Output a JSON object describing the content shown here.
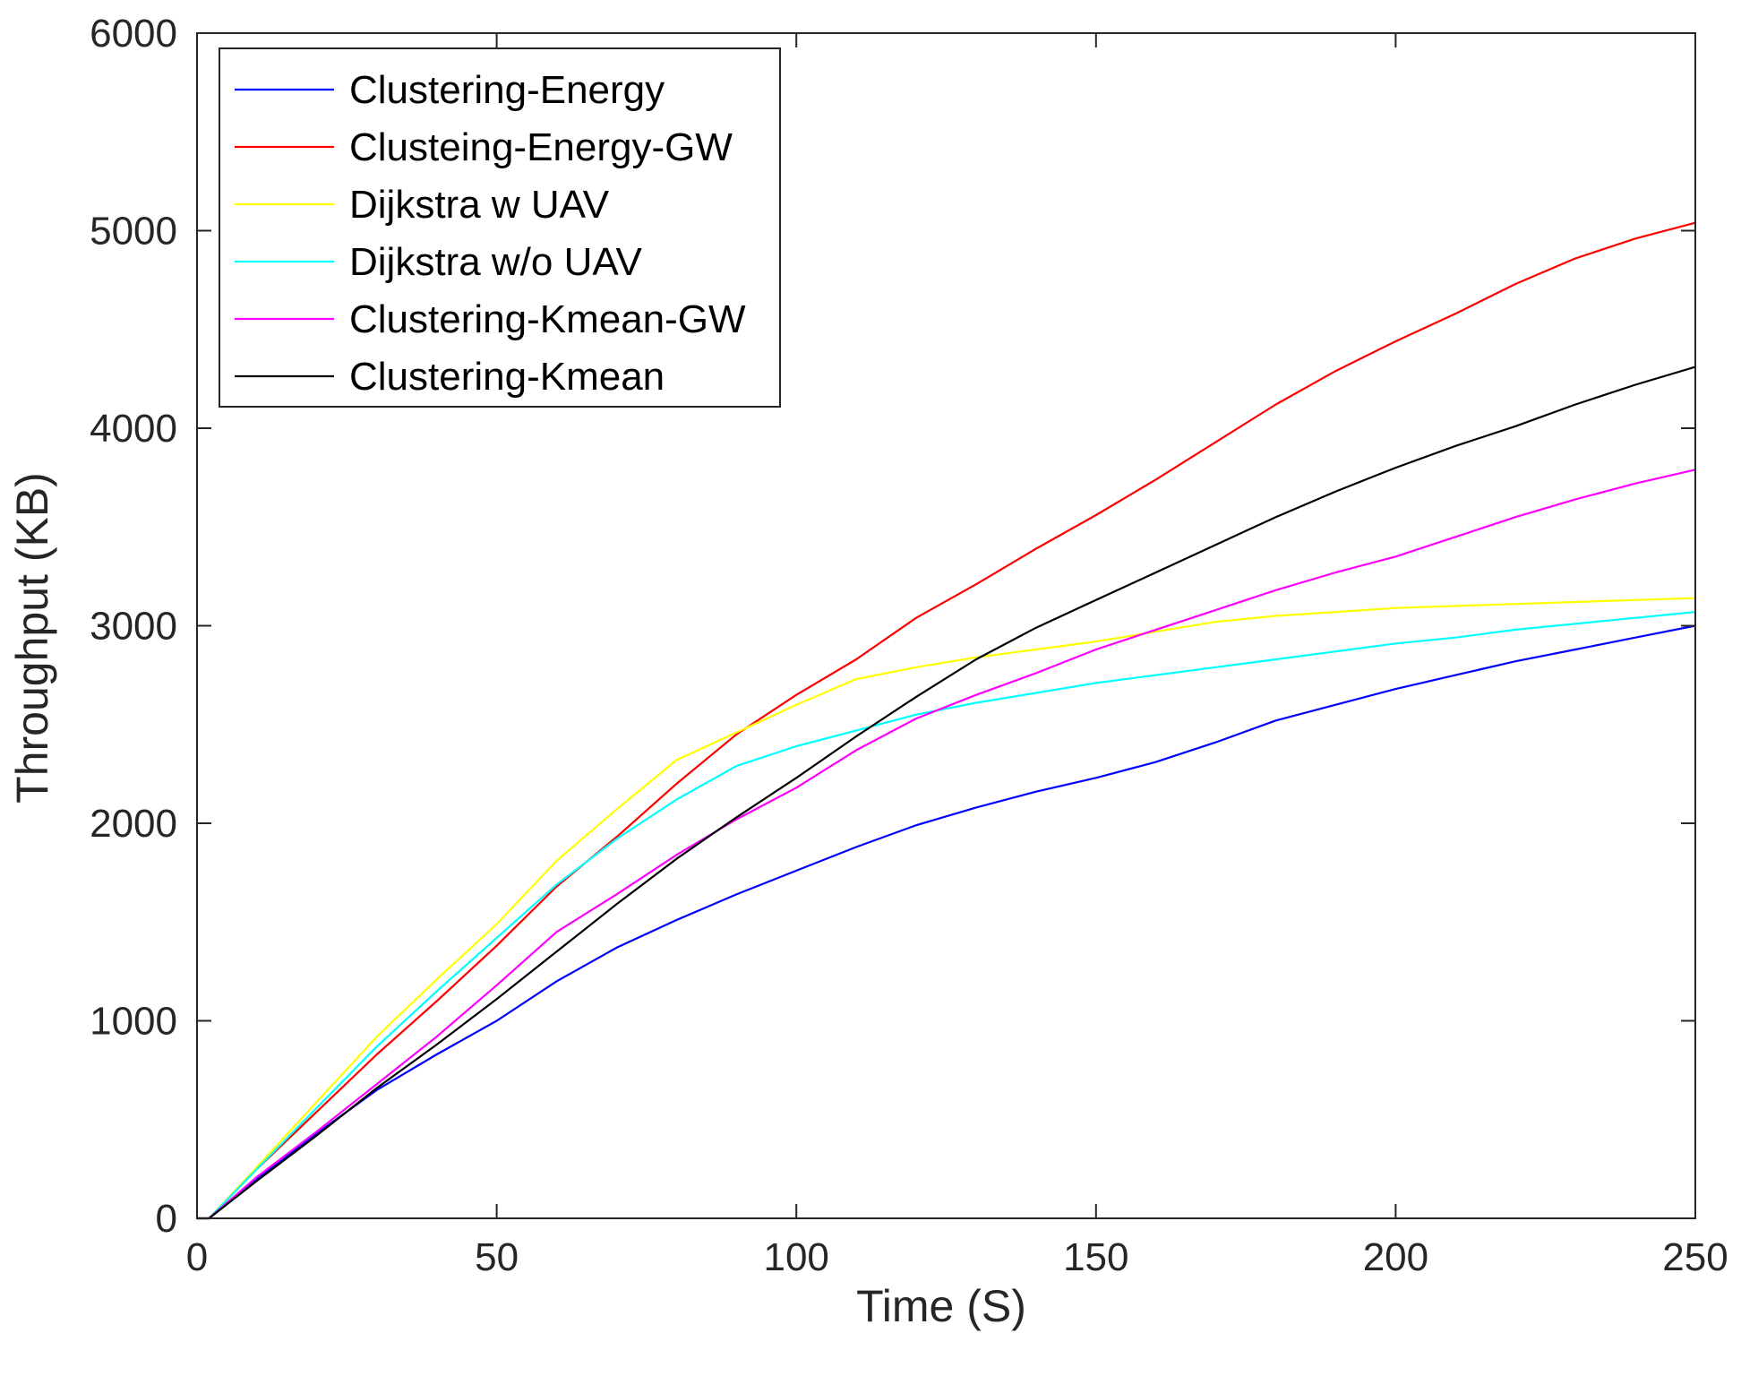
{
  "chart_data": {
    "type": "line",
    "title": "",
    "xlabel": "Time (S)",
    "ylabel": "Throughput (KB)",
    "xlim": [
      0,
      250
    ],
    "ylim": [
      0,
      6000
    ],
    "xticks": [
      0,
      50,
      100,
      150,
      200,
      250
    ],
    "yticks": [
      0,
      1000,
      2000,
      3000,
      4000,
      5000,
      6000
    ],
    "xtick_labels": [
      "0",
      "50",
      "100",
      "150",
      "200",
      "250"
    ],
    "ytick_labels": [
      "0",
      "1000",
      "2000",
      "3000",
      "4000",
      "5000",
      "6000"
    ],
    "grid": false,
    "legend_position": "top-left",
    "x": [
      0,
      2,
      10,
      20,
      30,
      40,
      50,
      60,
      70,
      80,
      90,
      100,
      110,
      120,
      130,
      140,
      150,
      160,
      170,
      180,
      190,
      200,
      210,
      220,
      230,
      240,
      250
    ],
    "series": [
      {
        "name": "Clustering-Energy",
        "color": "#0000ff",
        "values": [
          0,
          0,
          200,
          430,
          650,
          830,
          1000,
          1200,
          1370,
          1510,
          1640,
          1760,
          1880,
          1990,
          2080,
          2160,
          2230,
          2310,
          2410,
          2520,
          2600,
          2680,
          2750,
          2820,
          2880,
          2940,
          3000
        ]
      },
      {
        "name": "Clusteing-Energy-GW",
        "color": "#ff0000",
        "values": [
          0,
          0,
          250,
          540,
          830,
          1100,
          1380,
          1680,
          1930,
          2200,
          2450,
          2650,
          2830,
          3040,
          3210,
          3390,
          3560,
          3740,
          3930,
          4120,
          4290,
          4440,
          4580,
          4730,
          4860,
          4960,
          5040
        ]
      },
      {
        "name": "Dijkstra w UAV",
        "color": "#ffff00",
        "values": [
          0,
          0,
          260,
          590,
          920,
          1210,
          1490,
          1810,
          2070,
          2320,
          2460,
          2600,
          2730,
          2790,
          2840,
          2880,
          2920,
          2970,
          3020,
          3050,
          3070,
          3090,
          3100,
          3110,
          3120,
          3130,
          3140
        ]
      },
      {
        "name": "Dijkstra w/o UAV",
        "color": "#00ffff",
        "values": [
          0,
          0,
          250,
          560,
          870,
          1150,
          1420,
          1690,
          1920,
          2120,
          2290,
          2390,
          2470,
          2550,
          2610,
          2660,
          2710,
          2750,
          2790,
          2830,
          2870,
          2910,
          2940,
          2980,
          3010,
          3040,
          3070
        ]
      },
      {
        "name": "Clustering-Kmean-GW",
        "color": "#ff00ff",
        "values": [
          0,
          0,
          210,
          440,
          680,
          920,
          1180,
          1450,
          1640,
          1840,
          2020,
          2180,
          2370,
          2530,
          2650,
          2760,
          2880,
          2980,
          3080,
          3180,
          3270,
          3350,
          3450,
          3550,
          3640,
          3720,
          3790
        ]
      },
      {
        "name": "Clustering-Kmean",
        "color": "#000000",
        "values": [
          0,
          0,
          190,
          420,
          660,
          880,
          1110,
          1350,
          1590,
          1820,
          2030,
          2230,
          2440,
          2640,
          2830,
          2990,
          3130,
          3270,
          3410,
          3550,
          3680,
          3800,
          3910,
          4010,
          4120,
          4220,
          4310
        ]
      }
    ]
  }
}
